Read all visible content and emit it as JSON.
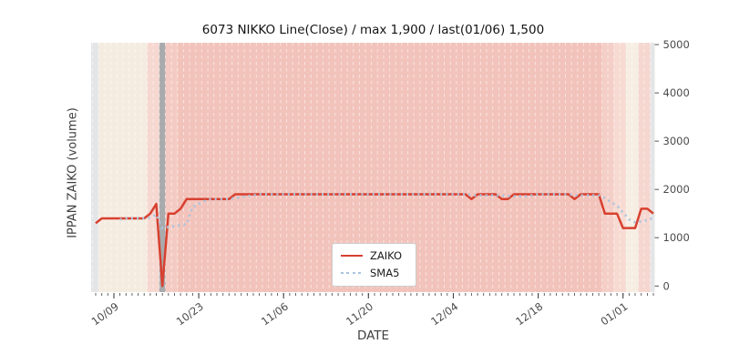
{
  "chart_data": {
    "type": "line",
    "title": "6073 NIKKO Line(Close) / max 1,900 / last(01/06) 1,500",
    "xlabel": "DATE",
    "ylabel": "IPPAN ZAIKO (volume)",
    "ylim": [
      0,
      5000
    ],
    "yticks": [
      0,
      1000,
      2000,
      3000,
      4000,
      5000
    ],
    "xtick_labels": [
      "10/09",
      "10/23",
      "11/06",
      "11/20",
      "12/04",
      "12/18",
      "01/01"
    ],
    "date_start": "10/06",
    "date_end": "01/06",
    "max_value": 1900,
    "last_value": 1500,
    "last_date": "01/06",
    "grid": "white dashed vertical lines, one per day",
    "legend_position": "lower center",
    "series": [
      {
        "name": "ZAIKO",
        "color": "#d8402f",
        "style": "solid",
        "runs": [
          [
            "10/06",
            "10/06",
            1300
          ],
          [
            "10/07",
            "10/14",
            1400
          ],
          [
            "10/15",
            "10/15",
            1500
          ],
          [
            "10/16",
            "10/16",
            1700
          ],
          [
            "10/17",
            "10/17",
            0
          ],
          [
            "10/18",
            "10/19",
            1500
          ],
          [
            "10/20",
            "10/20",
            1600
          ],
          [
            "10/21",
            "10/28",
            1800
          ],
          [
            "10/29",
            "12/06",
            1900
          ],
          [
            "12/07",
            "12/07",
            1800
          ],
          [
            "12/08",
            "12/11",
            1900
          ],
          [
            "12/12",
            "12/13",
            1800
          ],
          [
            "12/14",
            "12/23",
            1900
          ],
          [
            "12/24",
            "12/24",
            1800
          ],
          [
            "12/25",
            "12/28",
            1900
          ],
          [
            "12/29",
            "12/31",
            1500
          ],
          [
            "01/01",
            "01/03",
            1200
          ],
          [
            "01/04",
            "01/05",
            1600
          ],
          [
            "01/06",
            "01/06",
            1500
          ]
        ]
      },
      {
        "name": "SMA5",
        "color": "#a9c3de",
        "style": "dotted",
        "runs": [
          [
            "10/10",
            "10/10",
            1380
          ],
          [
            "10/11",
            "10/14",
            1400
          ],
          [
            "10/15",
            "10/15",
            1420
          ],
          [
            "10/16",
            "10/16",
            1480
          ],
          [
            "10/17",
            "10/17",
            1200
          ],
          [
            "10/18",
            "10/18",
            1220
          ],
          [
            "10/19",
            "10/19",
            1240
          ],
          [
            "10/20",
            "10/20",
            1260
          ],
          [
            "10/21",
            "10/21",
            1280
          ],
          [
            "10/22",
            "10/22",
            1640
          ],
          [
            "10/23",
            "10/23",
            1700
          ],
          [
            "10/24",
            "10/24",
            1760
          ],
          [
            "10/25",
            "10/28",
            1800
          ],
          [
            "10/29",
            "10/29",
            1820
          ],
          [
            "10/30",
            "10/30",
            1840
          ],
          [
            "10/31",
            "10/31",
            1860
          ],
          [
            "11/01",
            "11/01",
            1880
          ],
          [
            "11/02",
            "12/06",
            1900
          ],
          [
            "12/07",
            "12/12",
            1880
          ],
          [
            "12/13",
            "12/16",
            1860
          ],
          [
            "12/17",
            "12/17",
            1880
          ],
          [
            "12/18",
            "12/23",
            1900
          ],
          [
            "12/24",
            "12/28",
            1880
          ],
          [
            "12/29",
            "12/29",
            1820
          ],
          [
            "12/30",
            "12/30",
            1740
          ],
          [
            "12/31",
            "12/31",
            1660
          ],
          [
            "01/01",
            "01/01",
            1520
          ],
          [
            "01/02",
            "01/02",
            1380
          ],
          [
            "01/03",
            "01/03",
            1320
          ],
          [
            "01/04",
            "01/04",
            1340
          ],
          [
            "01/05",
            "01/05",
            1360
          ],
          [
            "01/06",
            "01/06",
            1420
          ]
        ]
      }
    ],
    "background_bands": [
      [
        "10/05",
        "10/06",
        "#e4e5e7"
      ],
      [
        "10/07",
        "10/14",
        "#f5ece1"
      ],
      [
        "10/15",
        "10/16",
        "#f6d8d1"
      ],
      [
        "10/17",
        "10/17",
        "#a8aaac"
      ],
      [
        "10/18",
        "10/19",
        "#f4cbc3"
      ],
      [
        "10/20",
        "12/28",
        "#f2c3bb"
      ],
      [
        "12/29",
        "12/30",
        "#f4cfc7"
      ],
      [
        "12/31",
        "01/01",
        "#f7dbd3"
      ],
      [
        "01/02",
        "01/03",
        "#f6eee3"
      ],
      [
        "01/04",
        "01/05",
        "#f6d7d0"
      ],
      [
        "01/06",
        "01/06",
        "#e4e5e7"
      ]
    ]
  }
}
